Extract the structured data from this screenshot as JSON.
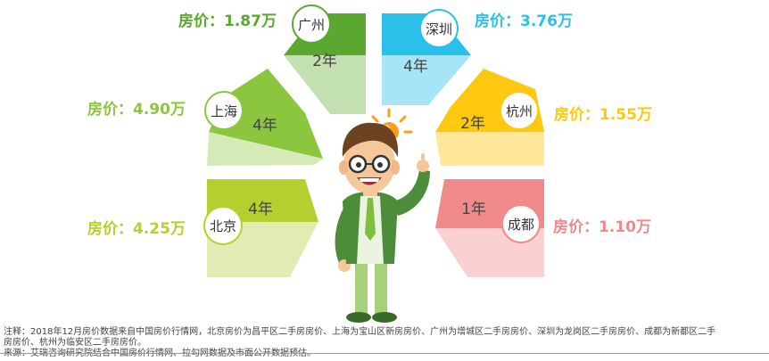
{
  "cities": [
    {
      "id": "guangzhou",
      "name": "广州",
      "years": "2年",
      "price": "房价：1.87万",
      "color": "#5aa830",
      "light": "#c2e0b0"
    },
    {
      "id": "shanghai",
      "name": "上海",
      "years": "4年",
      "price": "房价：4.90万",
      "color": "#8cc63f",
      "light": "#d6eab8"
    },
    {
      "id": "beijing",
      "name": "北京",
      "years": "4年",
      "price": "房价：4.25万",
      "color": "#b4cf2f",
      "light": "#e1ecb5"
    },
    {
      "id": "shenzhen",
      "name": "深圳",
      "years": "4年",
      "price": "房价：3.76万",
      "color": "#2bc0ea",
      "light": "#a6e5f7"
    },
    {
      "id": "hangzhou",
      "name": "杭州",
      "years": "2年",
      "price": "房价：1.55万",
      "color": "#ffc810",
      "light": "#ffe699"
    },
    {
      "id": "chengdu",
      "name": "成都",
      "years": "1年",
      "price": "房价：1.10万",
      "color": "#f08a8a",
      "light": "#fad0d0"
    }
  ],
  "note_lines": [
    "注释：2018年12月房价数据来自中国房价行情网，北京房价为昌平区二手房房价、上海为宝山区新房房价、广州为增城区二手房房价、深圳为龙岗区二手房房价、成都为新都区二手",
    "房房价、杭州为临安区二手房房价。",
    "来源：艾瑞咨询研究院结合中国房价行情网、拉勾网数据及市面公开数据预估。"
  ]
}
